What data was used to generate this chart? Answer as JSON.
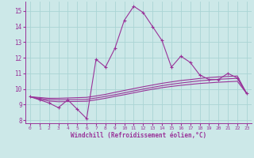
{
  "x": [
    0,
    1,
    2,
    3,
    4,
    5,
    6,
    7,
    8,
    9,
    10,
    11,
    12,
    13,
    14,
    15,
    16,
    17,
    18,
    19,
    20,
    21,
    22,
    23
  ],
  "main_line": [
    9.5,
    9.3,
    9.1,
    8.8,
    9.3,
    8.7,
    8.1,
    11.9,
    11.4,
    12.6,
    14.4,
    15.3,
    14.9,
    14.0,
    13.1,
    11.4,
    12.1,
    11.7,
    10.9,
    10.6,
    10.6,
    11.0,
    10.7,
    9.7
  ],
  "trend1": [
    9.5,
    9.45,
    9.4,
    9.4,
    9.42,
    9.44,
    9.46,
    9.55,
    9.65,
    9.78,
    9.9,
    10.02,
    10.14,
    10.25,
    10.36,
    10.45,
    10.54,
    10.6,
    10.67,
    10.73,
    10.77,
    10.8,
    10.83,
    9.7
  ],
  "trend2": [
    9.5,
    9.4,
    9.32,
    9.3,
    9.31,
    9.32,
    9.33,
    9.42,
    9.52,
    9.63,
    9.75,
    9.87,
    9.99,
    10.1,
    10.21,
    10.3,
    10.38,
    10.45,
    10.52,
    10.57,
    10.62,
    10.65,
    10.68,
    9.7
  ],
  "trend3": [
    9.5,
    9.35,
    9.22,
    9.18,
    9.19,
    9.2,
    9.21,
    9.3,
    9.4,
    9.52,
    9.63,
    9.75,
    9.87,
    9.98,
    10.08,
    10.16,
    10.23,
    10.29,
    10.35,
    10.39,
    10.43,
    10.46,
    10.49,
    9.7
  ],
  "line_color": "#993399",
  "bg_color": "#cce8e8",
  "grid_color": "#aad4d4",
  "xlabel": "Windchill (Refroidissement éolien,°C)",
  "ylim": [
    7.8,
    15.6
  ],
  "xlim": [
    -0.5,
    23.5
  ],
  "yticks": [
    8,
    9,
    10,
    11,
    12,
    13,
    14,
    15
  ],
  "xticks": [
    0,
    1,
    2,
    3,
    4,
    5,
    6,
    7,
    8,
    9,
    10,
    11,
    12,
    13,
    14,
    15,
    16,
    17,
    18,
    19,
    20,
    21,
    22,
    23
  ]
}
